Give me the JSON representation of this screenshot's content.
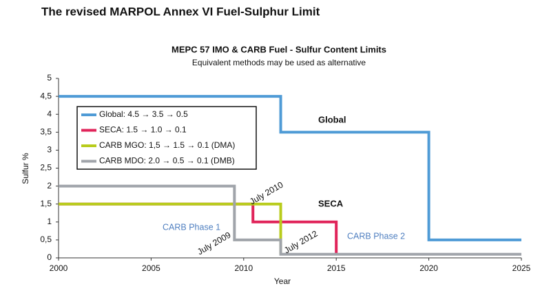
{
  "page_title": "The revised MARPOL Annex VI Fuel-Sulphur Limit",
  "chart_data": {
    "type": "line",
    "step": true,
    "title": "MEPC 57 IMO & CARB Fuel - Sulfur Content Limits",
    "subtitle": "Equivalent methods may be used as alternative",
    "x_label": "Year",
    "y_label": "Sulfur %",
    "xlim": [
      2000,
      2025
    ],
    "xticks": [
      2000,
      2005,
      2010,
      2015,
      2020,
      2025
    ],
    "ylim": [
      0,
      5
    ],
    "yticks": [
      0,
      {
        "value": 0.5,
        "label": "0,5"
      },
      1,
      {
        "value": 1.5,
        "label": "1,5"
      },
      2,
      {
        "value": 2.5,
        "label": "2,5"
      },
      3,
      {
        "value": 3.5,
        "label": "3,5"
      },
      4,
      {
        "value": 4.5,
        "label": "4,5"
      },
      5
    ],
    "grid": false,
    "legend": "upper left",
    "series": [
      {
        "name": "Global: 4.5 → 3.5 → 0.5",
        "color": "#4f9bd6",
        "x": [
          2000,
          2012,
          2012,
          2020,
          2020,
          2025
        ],
        "values": [
          4.5,
          4.5,
          3.5,
          3.5,
          0.5,
          0.5
        ]
      },
      {
        "name": "SECA: 1.5 → 1.0 → 0.1",
        "color": "#e0245a",
        "x": [
          2000,
          2010.5,
          2010.5,
          2015,
          2015
        ],
        "values": [
          1.5,
          1.5,
          1.0,
          1.0,
          0.1
        ]
      },
      {
        "name": "CARB MGO: 1,5 → 1.5 → 0.1 (DMA)",
        "color": "#b8cc1c",
        "x": [
          2000,
          2012,
          2012
        ],
        "values": [
          1.5,
          1.5,
          0.1
        ]
      },
      {
        "name": "CARB MDO: 2.0 → 0.5 → 0.1 (DMB)",
        "color": "#a0a4aa",
        "x": [
          2000,
          2009.5,
          2009.5,
          2012,
          2012,
          2025
        ],
        "values": [
          2.0,
          2.0,
          0.5,
          0.5,
          0.1,
          0.1
        ]
      }
    ],
    "annotations": [
      {
        "text": "Global",
        "bold": true
      },
      {
        "text": "SECA",
        "bold": true
      },
      {
        "text": "CARB Phase 1",
        "color": "#4f7fc0"
      },
      {
        "text": "CARB Phase 2",
        "color": "#4f7fc0"
      },
      {
        "text": "July 2010"
      },
      {
        "text": "July 2009"
      },
      {
        "text": "July 2012"
      }
    ]
  }
}
